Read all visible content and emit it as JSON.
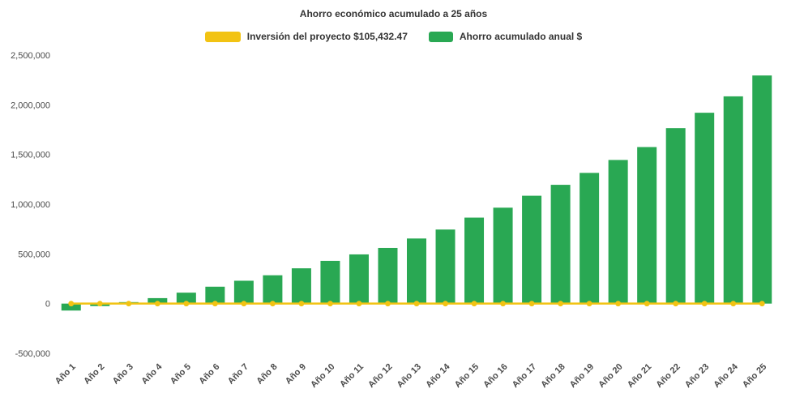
{
  "title": "Ahorro económico acumulado a 25 años",
  "legend": {
    "items": [
      {
        "label": "Inversión del proyecto $105,432.47",
        "color": "#f2c313"
      },
      {
        "label": "Ahorro acumulado anual $",
        "color": "#29a853"
      }
    ]
  },
  "chart_data": {
    "type": "bar",
    "title": "Ahorro económico acumulado a 25 años",
    "categories": [
      "Año 1",
      "Año 2",
      "Año 3",
      "Año 4",
      "Año 5",
      "Año 6",
      "Año 7",
      "Año 8",
      "Año 9",
      "Año 10",
      "Año 11",
      "Año 12",
      "Año 13",
      "Año 14",
      "Año 15",
      "Año 16",
      "Año 17",
      "Año 18",
      "Año 19",
      "Año 20",
      "Año 21",
      "Año 22",
      "Año 23",
      "Año 24",
      "Año 25"
    ],
    "series": [
      {
        "name": "Inversión del proyecto $105,432.47",
        "type": "line",
        "color": "#f2c313",
        "values": [
          0,
          0,
          0,
          0,
          0,
          0,
          0,
          0,
          0,
          0,
          0,
          0,
          0,
          0,
          0,
          0,
          0,
          0,
          0,
          0,
          0,
          0,
          0,
          0,
          0
        ]
      },
      {
        "name": "Ahorro acumulado anual $",
        "type": "bar",
        "color": "#29a853",
        "values": [
          -70000,
          -25000,
          15000,
          55000,
          110000,
          170000,
          230000,
          285000,
          355000,
          430000,
          495000,
          560000,
          655000,
          745000,
          865000,
          965000,
          1085000,
          1195000,
          1315000,
          1445000,
          1575000,
          1765000,
          1920000,
          2085000,
          2295000
        ]
      }
    ],
    "ylim": [
      -500000,
      2500000
    ],
    "yticks": {
      "values": [
        -500000,
        0,
        500000,
        1000000,
        1500000,
        2000000,
        2500000
      ],
      "labels": [
        "-500,000",
        "0",
        "500,000",
        "1,000,000",
        "1,500,000",
        "2,000,000",
        "2,500,000"
      ]
    },
    "legend_position": "top",
    "grid": false
  }
}
